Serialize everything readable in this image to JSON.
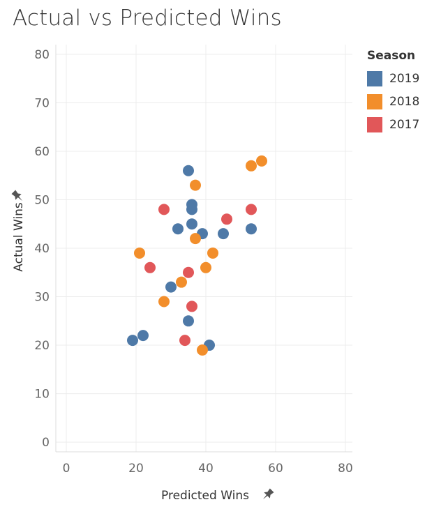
{
  "chart_data": {
    "type": "scatter",
    "title": "Actual vs Predicted Wins",
    "xlabel": "Predicted Wins",
    "ylabel": "Actual Wins",
    "xlim": [
      -3,
      82
    ],
    "ylim": [
      -2,
      82
    ],
    "xticks": [
      0,
      20,
      40,
      60,
      80
    ],
    "yticks": [
      0,
      10,
      20,
      30,
      40,
      50,
      60,
      70,
      80
    ],
    "grid": true,
    "legend": {
      "title": "Season",
      "placement": "top-right"
    },
    "series": [
      {
        "name": "2019",
        "color": "#4E79A7",
        "points": [
          {
            "x": 35,
            "y": 56
          },
          {
            "x": 36,
            "y": 49
          },
          {
            "x": 36,
            "y": 48
          },
          {
            "x": 32,
            "y": 44
          },
          {
            "x": 36,
            "y": 45
          },
          {
            "x": 39,
            "y": 43
          },
          {
            "x": 45,
            "y": 43
          },
          {
            "x": 53,
            "y": 44
          },
          {
            "x": 30,
            "y": 32
          },
          {
            "x": 35,
            "y": 25
          },
          {
            "x": 19,
            "y": 21
          },
          {
            "x": 22,
            "y": 22
          },
          {
            "x": 41,
            "y": 20
          }
        ]
      },
      {
        "name": "2018",
        "color": "#F28E2B",
        "points": [
          {
            "x": 53,
            "y": 57
          },
          {
            "x": 56,
            "y": 58
          },
          {
            "x": 37,
            "y": 53
          },
          {
            "x": 37,
            "y": 42
          },
          {
            "x": 21,
            "y": 39
          },
          {
            "x": 42,
            "y": 39
          },
          {
            "x": 40,
            "y": 36
          },
          {
            "x": 33,
            "y": 33
          },
          {
            "x": 28,
            "y": 29
          },
          {
            "x": 39,
            "y": 19
          }
        ]
      },
      {
        "name": "2017",
        "color": "#E15759",
        "points": [
          {
            "x": 28,
            "y": 48
          },
          {
            "x": 53,
            "y": 48
          },
          {
            "x": 46,
            "y": 46
          },
          {
            "x": 24,
            "y": 36
          },
          {
            "x": 35,
            "y": 35
          },
          {
            "x": 36,
            "y": 28
          },
          {
            "x": 34,
            "y": 21
          }
        ]
      }
    ]
  },
  "icons": {
    "pin": "pin-icon"
  }
}
